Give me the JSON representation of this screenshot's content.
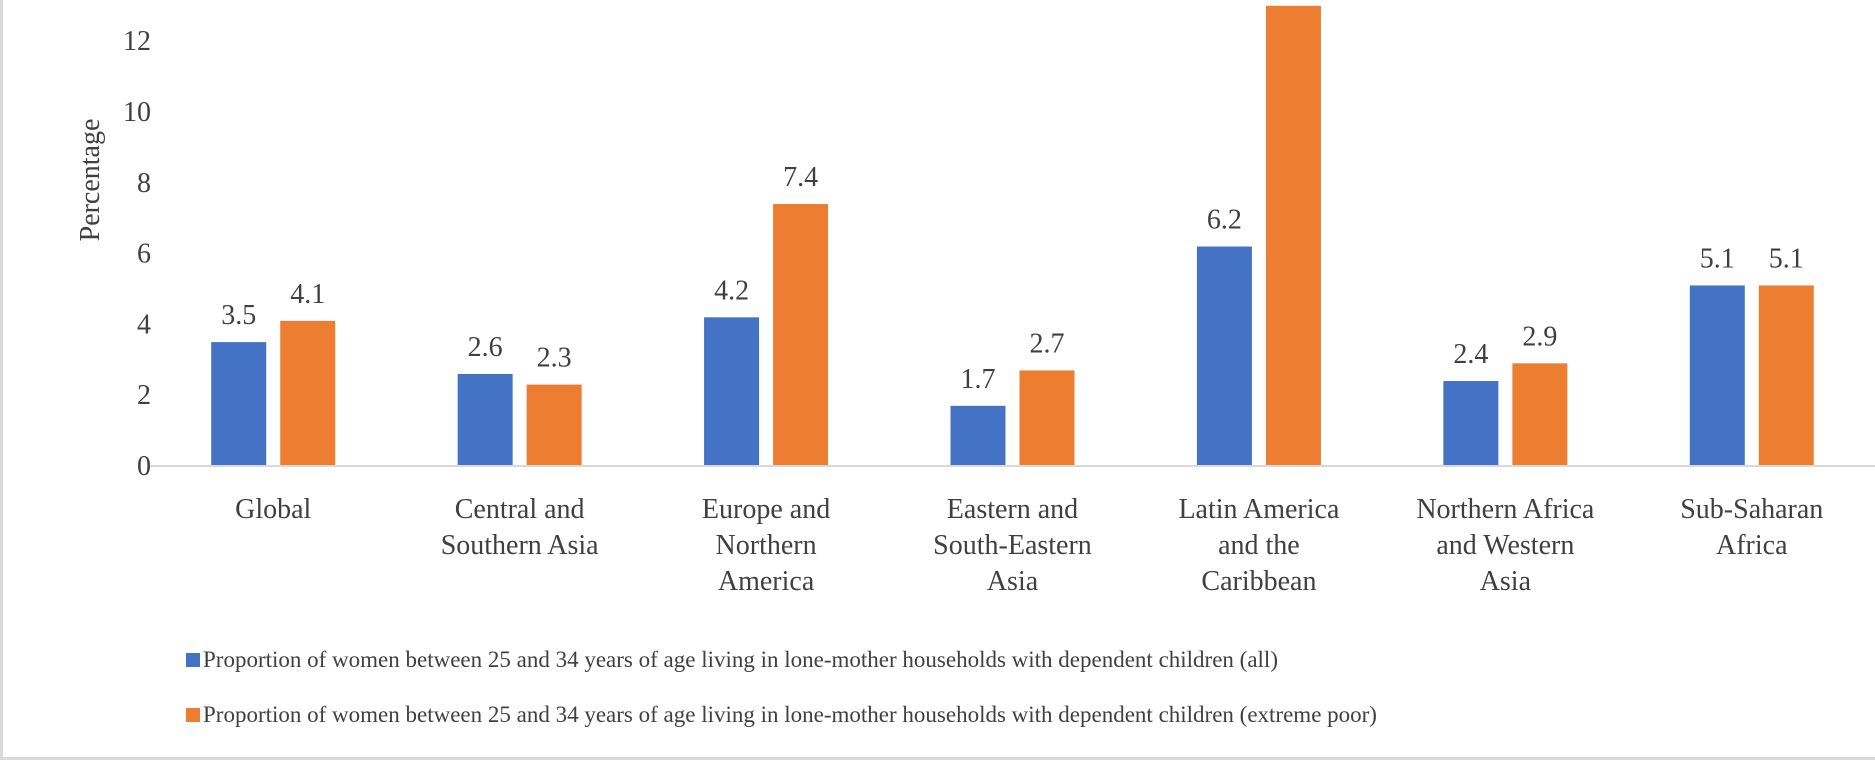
{
  "chart_data": {
    "type": "bar",
    "title": "",
    "xlabel": "",
    "ylabel": "Percentage",
    "ylim": [
      0,
      13
    ],
    "yticks": [
      0,
      2,
      4,
      6,
      8,
      10,
      12
    ],
    "grid": false,
    "legend_position": "bottom",
    "categories": [
      [
        "Global"
      ],
      [
        "Central and",
        "Southern Asia"
      ],
      [
        "Europe and",
        "Northern",
        "America"
      ],
      [
        "Eastern and",
        "South-Eastern",
        "Asia"
      ],
      [
        "Latin America",
        "and the",
        "Caribbean"
      ],
      [
        "Northern Africa",
        "and Western",
        "Asia"
      ],
      [
        "Sub-Saharan",
        "Africa"
      ]
    ],
    "series": [
      {
        "name": "Proportion of women between 25 and 34 years of age living in lone-mother households with dependent children (all)",
        "color": "#4472c4",
        "values": [
          3.5,
          2.6,
          4.2,
          1.7,
          6.2,
          2.4,
          5.1
        ],
        "labels": [
          "3.5",
          "2.6",
          "4.2",
          "1.7",
          "6.2",
          "2.4",
          "5.1"
        ]
      },
      {
        "name": "Proportion of women between 25 and 34 years of age living in lone-mother households with dependent children (extreme poor)",
        "color": "#ed7d31",
        "values": [
          4.1,
          2.3,
          7.4,
          2.7,
          13.2,
          2.9,
          5.1
        ],
        "labels": [
          "4.1",
          "2.3",
          "7.4",
          "2.7",
          "",
          "2.9",
          "5.1"
        ]
      }
    ]
  }
}
